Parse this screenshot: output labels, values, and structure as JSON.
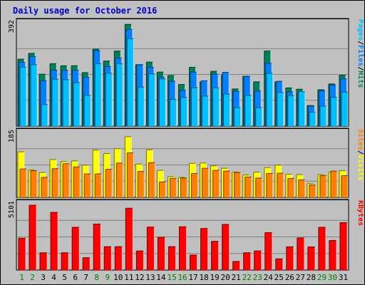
{
  "chart_data": {
    "title": "Daily usage for October 2016",
    "days": [
      "1",
      "2",
      "3",
      "4",
      "5",
      "6",
      "7",
      "8",
      "9",
      "10",
      "11",
      "12",
      "13",
      "14",
      "15",
      "16",
      "17",
      "18",
      "19",
      "20",
      "21",
      "22",
      "23",
      "24",
      "25",
      "26",
      "27",
      "28",
      "29",
      "30",
      "31"
    ],
    "weekend_days": [
      "1",
      "2",
      "8",
      "9",
      "15",
      "16",
      "22",
      "23",
      "29",
      "30"
    ],
    "colors": {
      "hits": "#00805a",
      "files": "#0080ff",
      "pages": "#00c0ff",
      "visits": "#ffff00",
      "sites": "#ff8000",
      "kbytes": "#ff0000",
      "weekend": "#008000",
      "weekday": "#000000",
      "panel": "#c0c0c0",
      "title": "#0000cc"
    },
    "charts": [
      {
        "type": "bar",
        "name": "hits-files-pages",
        "ymax_label": "392",
        "ymax": 392,
        "legend": [
          "Hits",
          "/",
          "Files",
          "/",
          "Pages"
        ],
        "series": [
          {
            "name": "Hits",
            "values": [
              254,
              276,
              197,
              237,
              229,
              229,
              203,
              292,
              247,
              285,
              386,
              233,
              243,
              205,
              192,
              158,
              223,
              168,
              208,
              193,
              141,
              189,
              168,
              285,
              168,
              145,
              140,
              78,
              138,
              160,
              193
            ]
          },
          {
            "name": "Files",
            "values": [
              242,
              264,
              172,
              212,
              212,
              212,
              185,
              286,
              226,
              258,
              367,
              233,
              223,
              186,
              170,
              136,
              205,
              172,
              197,
              204,
              132,
              188,
              133,
              238,
              170,
              130,
              125,
              76,
              134,
              156,
              179
            ]
          },
          {
            "name": "Pages",
            "values": [
              224,
              233,
              82,
              178,
              176,
              165,
              117,
              237,
              201,
              237,
              332,
              148,
              198,
              179,
              101,
              109,
              146,
              114,
              145,
              122,
              70,
              117,
              70,
              200,
              128,
              116,
              131,
              53,
              76,
              109,
              129
            ]
          }
        ]
      },
      {
        "type": "bar",
        "name": "visits-sites",
        "ymax_label": "185",
        "ymax": 185,
        "legend": [
          "Visits",
          "/",
          "Sites"
        ],
        "series": [
          {
            "name": "Visits",
            "values": [
              130,
              78,
              71,
              108,
              102,
              104,
              92,
              135,
              125,
              139,
              173,
              95,
              136,
              77,
              59,
              57,
              97,
              98,
              90,
              83,
              72,
              64,
              72,
              85,
              92,
              66,
              65,
              39,
              65,
              72,
              76
            ]
          },
          {
            "name": "Sites",
            "values": [
              81,
              76,
              57,
              82,
              96,
              87,
              67,
              67,
              80,
              98,
              127,
              74,
              99,
              44,
              54,
              55,
              68,
              83,
              77,
              75,
              71,
              58,
              55,
              68,
              69,
              54,
              50,
              35,
              62,
              75,
              62
            ]
          }
        ]
      },
      {
        "type": "bar",
        "name": "kbytes",
        "ymax_label": "5101",
        "ymax": 5101,
        "legend": [
          "KBytes"
        ],
        "series": [
          {
            "name": "KBytes",
            "values": [
              2450,
              4990,
              1330,
              4440,
              1330,
              3290,
              950,
              3540,
              1800,
              1800,
              4760,
              1470,
              3310,
              2520,
              1800,
              3330,
              1150,
              3200,
              2210,
              3510,
              660,
              1330,
              1470,
              2880,
              860,
              1790,
              2470,
              1780,
              3290,
              2280,
              3650
            ]
          }
        ]
      }
    ]
  }
}
